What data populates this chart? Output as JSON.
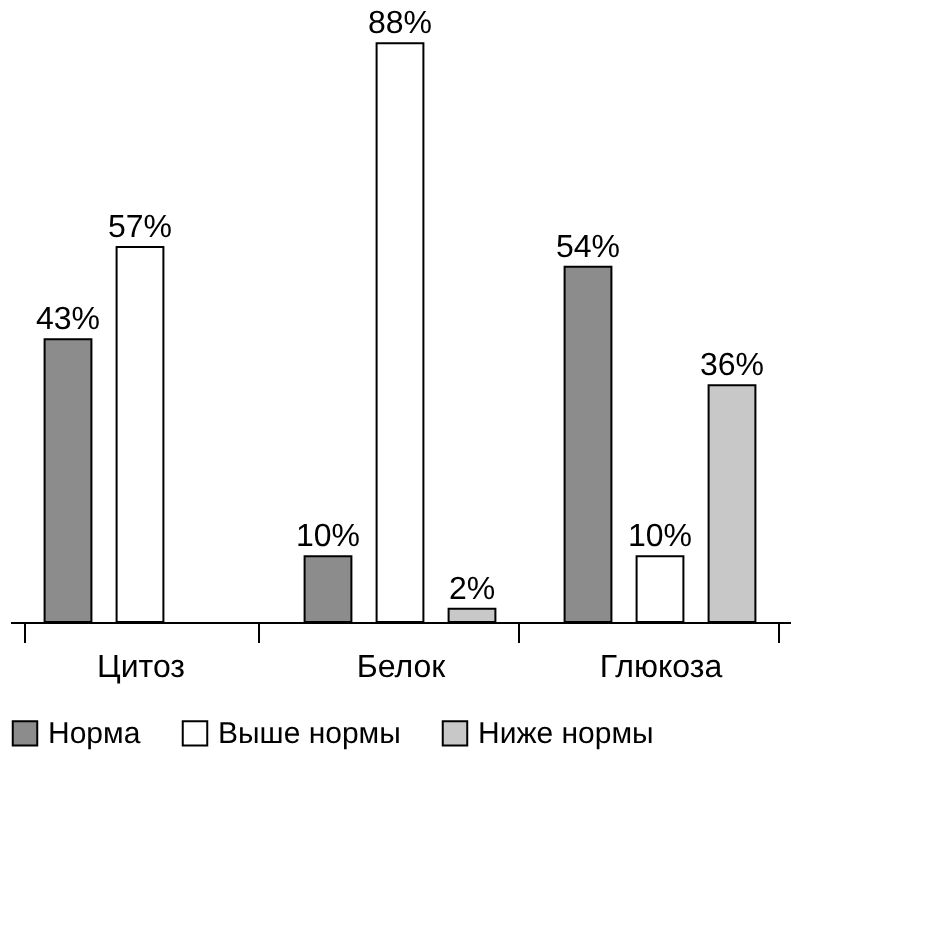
{
  "chart_data": {
    "type": "bar",
    "categories": [
      "Цитоз",
      "Белок",
      "Глюкоза"
    ],
    "series": [
      {
        "name": "Норма",
        "color": "#8c8c8c",
        "values": [
          43,
          10,
          54
        ],
        "value_labels": [
          "43%",
          "10%",
          "54%"
        ]
      },
      {
        "name": "Выше нормы",
        "color": "#ffffff",
        "values": [
          57,
          88,
          10
        ],
        "value_labels": [
          "57%",
          "88%",
          "10%"
        ]
      },
      {
        "name": "Ниже нормы",
        "color": "#c8c8c8",
        "values": [
          null,
          2,
          36
        ],
        "value_labels": [
          null,
          "2%",
          "36%"
        ]
      }
    ],
    "legend": "bottom",
    "grid": false
  }
}
